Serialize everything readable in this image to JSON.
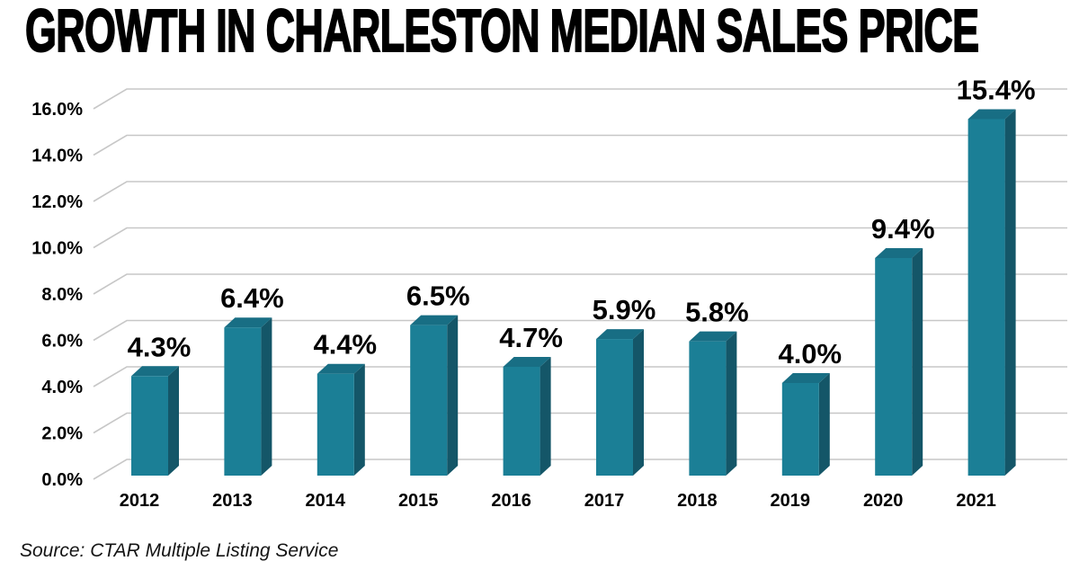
{
  "title": {
    "text": "GROWTH IN CHARLESTON MEDIAN SALES PRICE"
  },
  "source": {
    "text": "Source: CTAR Multiple Listing Service"
  },
  "chart_data": {
    "type": "bar",
    "style": "3d-column",
    "title": "GROWTH IN CHARLESTON MEDIAN SALES PRICE",
    "categories": [
      "2012",
      "2013",
      "2014",
      "2015",
      "2016",
      "2017",
      "2018",
      "2019",
      "2020",
      "2021"
    ],
    "values": [
      4.3,
      6.4,
      4.4,
      6.5,
      4.7,
      5.9,
      5.8,
      4.0,
      9.4,
      15.4
    ],
    "data_labels": [
      "4.3%",
      "6.4%",
      "4.4%",
      "6.5%",
      "4.7%",
      "5.9%",
      "5.8%",
      "4.0%",
      "9.4%",
      "15.4%"
    ],
    "xlabel": "",
    "ylabel": "",
    "ylim": [
      0,
      16
    ],
    "y_tick_step": 2,
    "y_tick_labels": [
      "0.0%",
      "2.0%",
      "4.0%",
      "6.0%",
      "8.0%",
      "10.0%",
      "12.0%",
      "14.0%",
      "16.0%"
    ],
    "grid": true,
    "legend": false,
    "source_note": "Source: CTAR Multiple Listing Service",
    "colors": {
      "bar_front": "#1b7f96",
      "bar_top": "#186e84",
      "bar_side": "#145668",
      "grid_line": "#c7c7c7",
      "tick_diagonal": "#b9b9b9",
      "label_text": "#000000",
      "background": "#ffffff"
    }
  }
}
